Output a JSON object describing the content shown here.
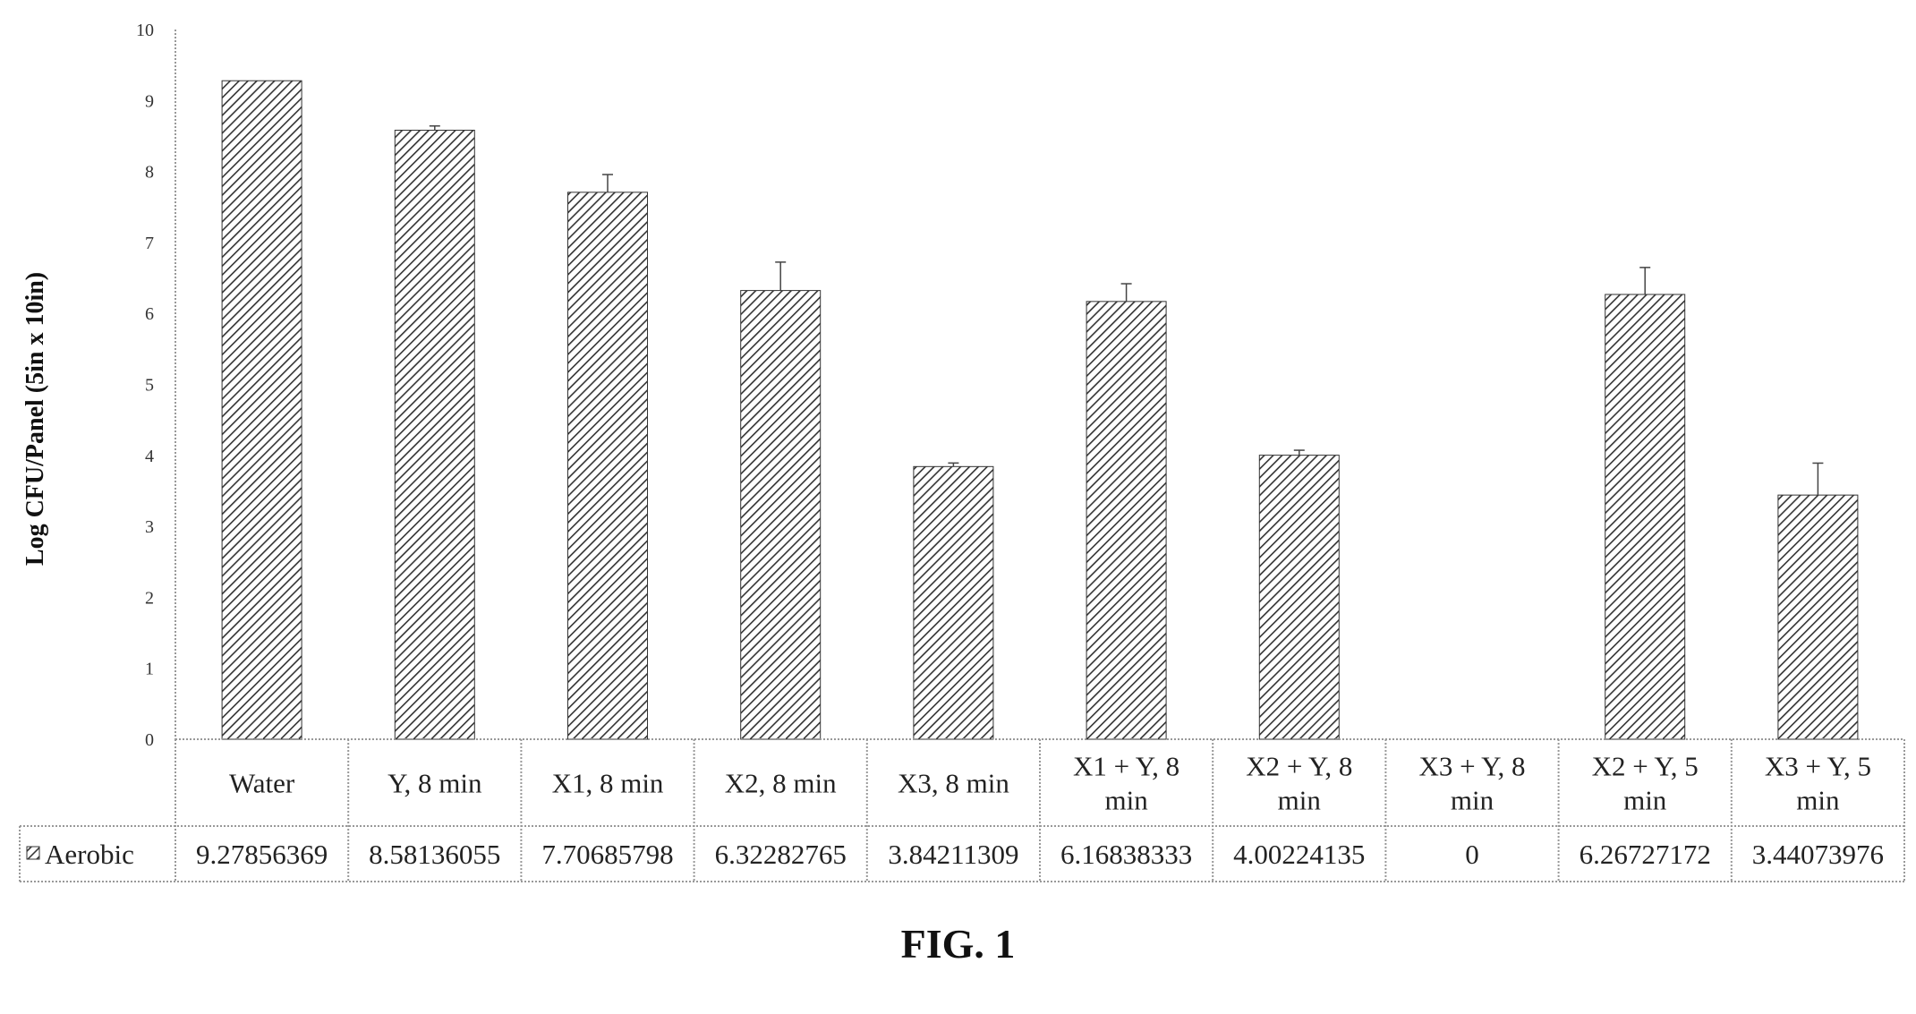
{
  "figure_caption": "FIG. 1",
  "chart_data": {
    "type": "bar",
    "title": "",
    "xlabel": "",
    "ylabel": "Log CFU/Panel (5in x 10in)",
    "ylim": [
      0,
      10
    ],
    "yticks": [
      "0",
      "1",
      "2",
      "3",
      "4",
      "5",
      "6",
      "7",
      "8",
      "9",
      "10"
    ],
    "grid": false,
    "legend_position": "bottom-left (data table row header)",
    "colors": {
      "bar_stroke": "#333333",
      "bar_fill": "#ffffff",
      "table_line": "#999999"
    },
    "categories": [
      [
        "Water"
      ],
      [
        "Y, 8 min"
      ],
      [
        "X1, 8 min"
      ],
      [
        "X2, 8 min"
      ],
      [
        "X3, 8 min"
      ],
      [
        "X1 + Y, 8",
        "min"
      ],
      [
        "X2 + Y, 8",
        "min"
      ],
      [
        "X3 + Y, 8",
        "min"
      ],
      [
        "X2 + Y, 5",
        "min"
      ],
      [
        "X3 + Y, 5",
        "min"
      ]
    ],
    "series": [
      {
        "name": "Aerobic",
        "values": [
          9.27856369,
          8.58136055,
          7.70685798,
          6.32282765,
          3.84211309,
          6.16838333,
          4.00224135,
          0,
          6.26727172,
          3.44073976
        ],
        "value_labels": [
          "9.27856369",
          "8.58136055",
          "7.70685798",
          "6.32282765",
          "3.84211309",
          "6.16838333",
          "4.00224135",
          "0",
          "6.26727172",
          "3.44073976"
        ],
        "error": [
          0.0,
          0.06,
          0.25,
          0.4,
          0.05,
          0.25,
          0.07,
          0,
          0.38,
          0.45
        ]
      }
    ]
  }
}
